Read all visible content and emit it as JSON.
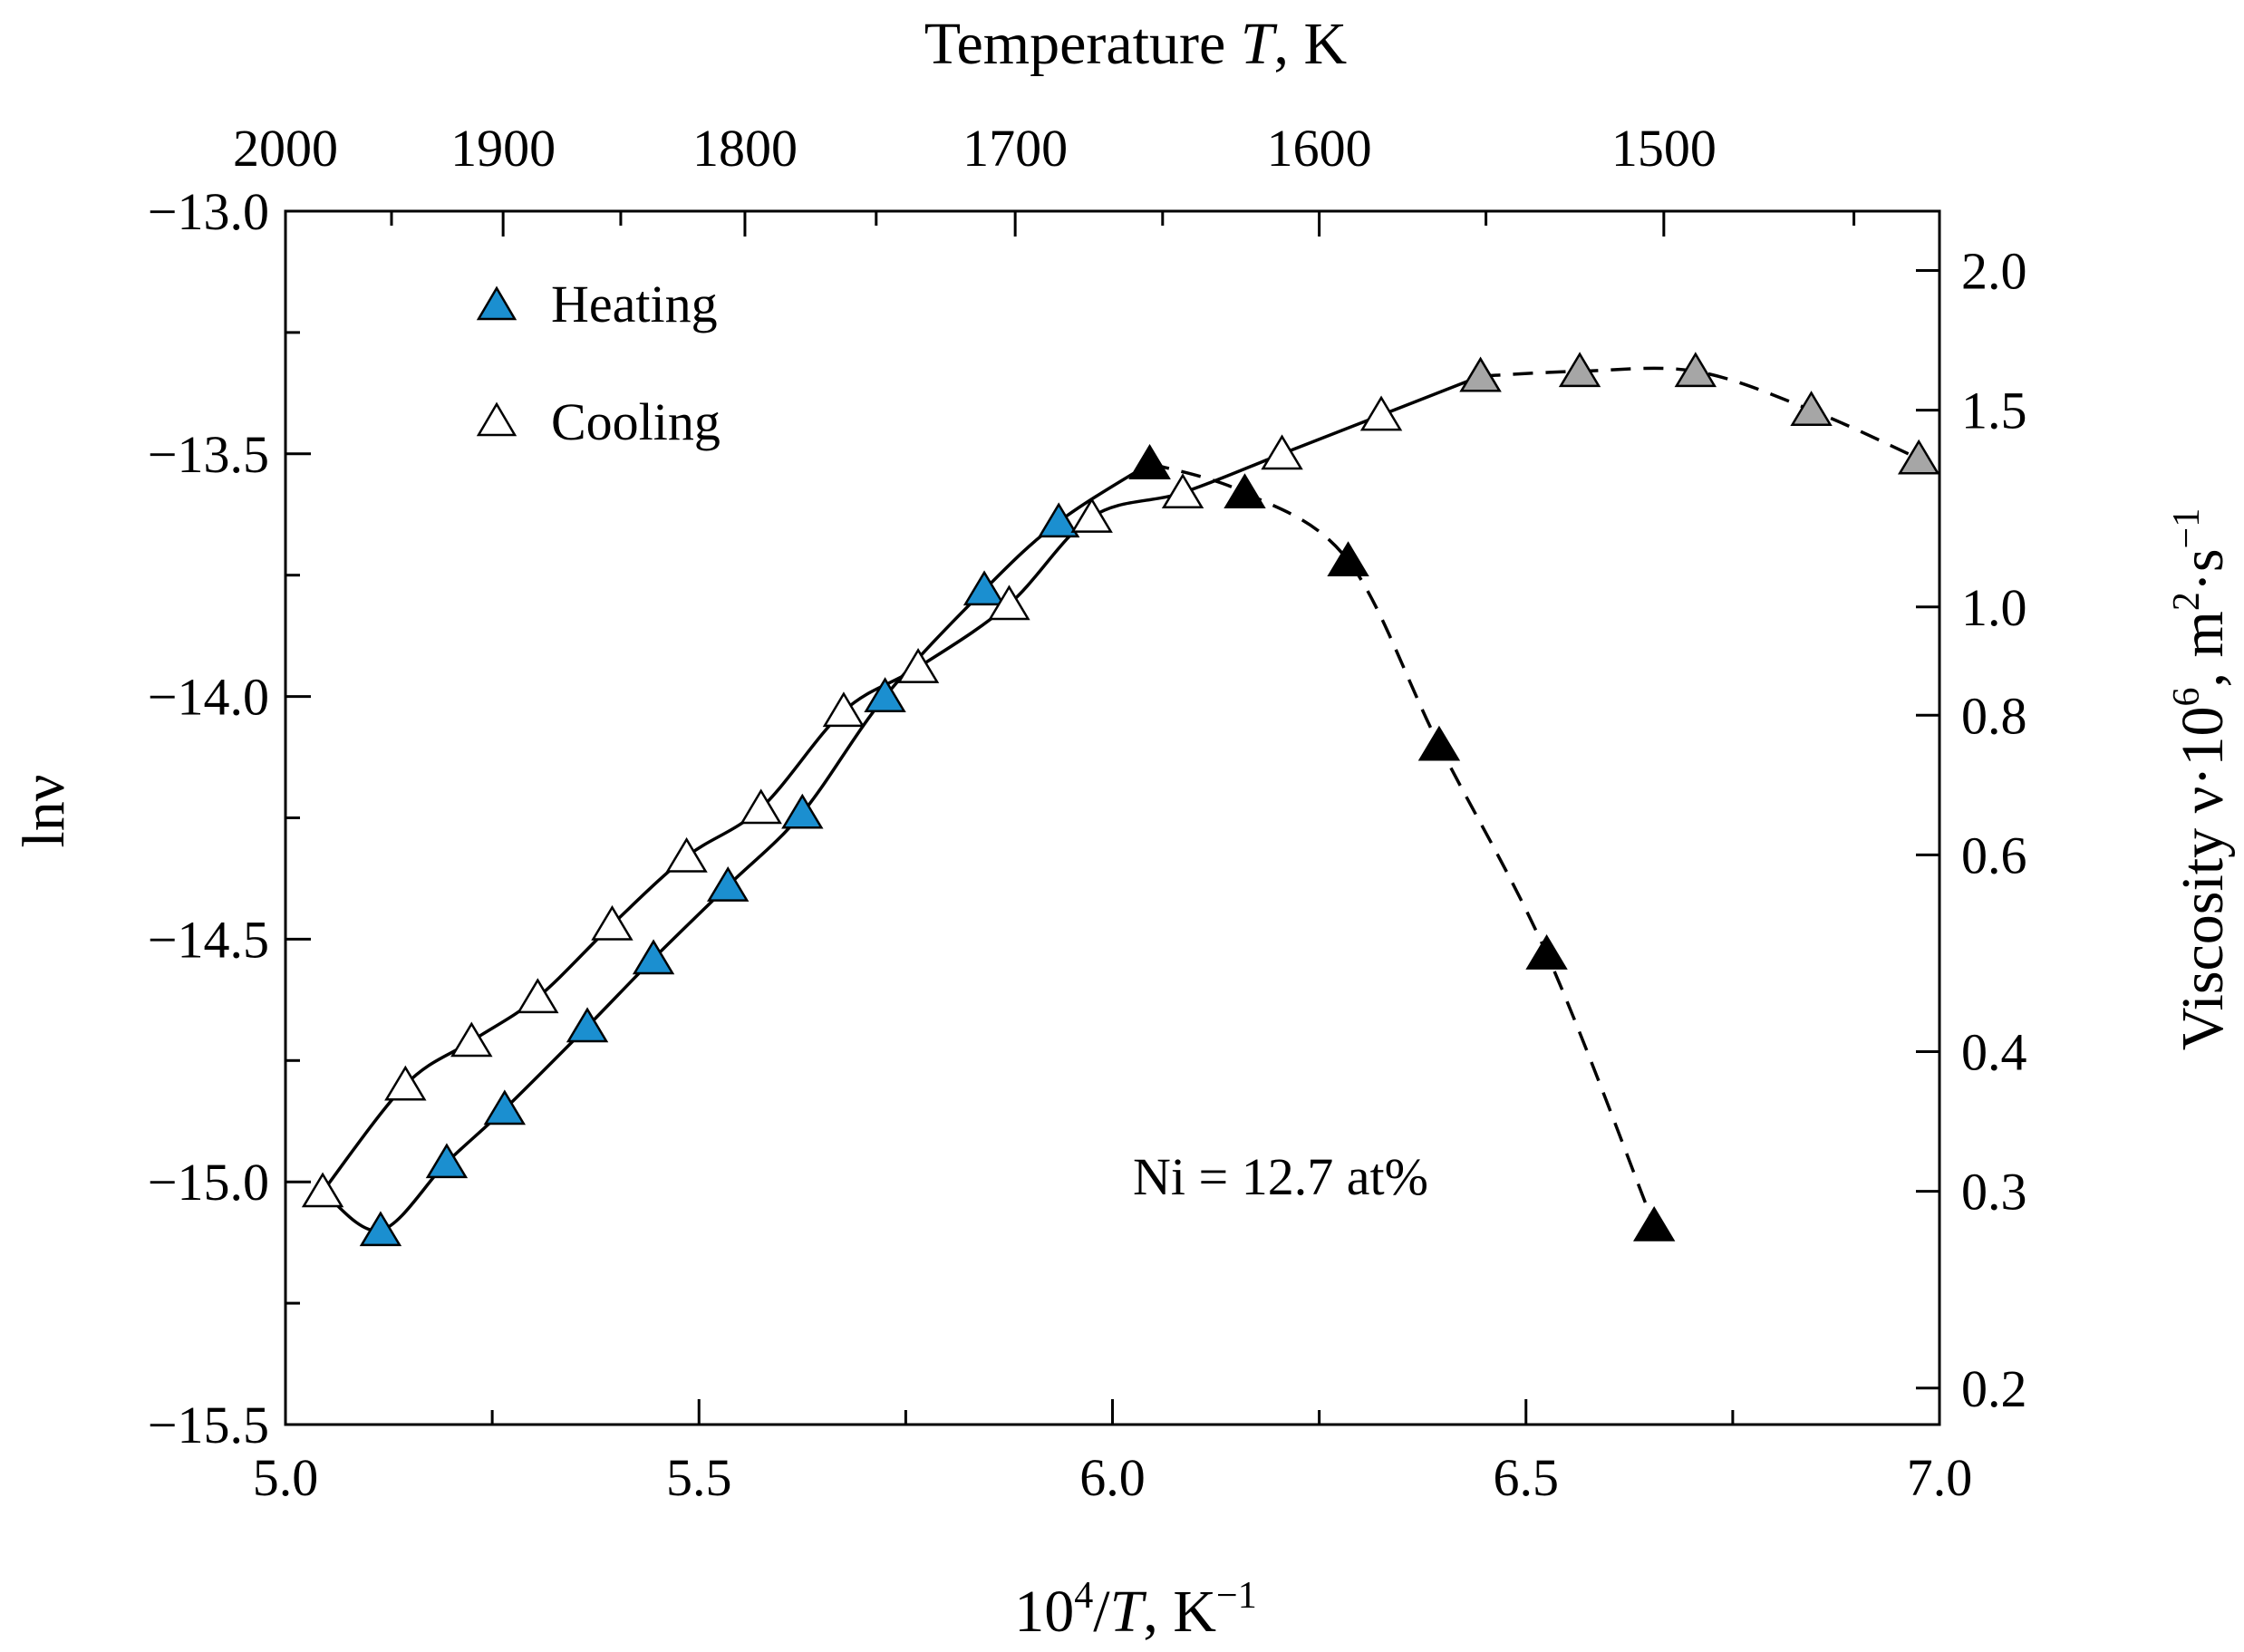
{
  "chart_data": {
    "type": "scatter",
    "title": "Temperature T, K",
    "xlabel": "10⁴/T, K⁻¹",
    "ylabel": "lnν",
    "y2label": "Viscosity ν·10⁶, m²·s⁻¹",
    "xlim": [
      5.0,
      7.0
    ],
    "ylim": [
      -15.5,
      -13.0
    ],
    "x_ticks": [
      "5.0",
      "5.5",
      "6.0",
      "6.5",
      "7.0"
    ],
    "y_ticks": [
      "-13.0",
      "-13.5",
      "-14.0",
      "-14.5",
      "-15.0",
      "-15.5"
    ],
    "top_axis": {
      "label": "Temperature T, K",
      "ticks": [
        "2000",
        "1900",
        "1800",
        "1700",
        "1600",
        "1500"
      ]
    },
    "right_axis": {
      "label": "Viscosity ν·10⁶, m²·s⁻¹",
      "ticks": [
        "2.0",
        "1.5",
        "1.0",
        "0.8",
        "0.6",
        "0.4",
        "0.3",
        "0.2"
      ]
    },
    "annotation": "Ni = 12.7 at%",
    "legend": {
      "position": "top-left",
      "entries": [
        "Heating",
        "Cooling"
      ]
    },
    "colors": {
      "heating": "#1b8fd0",
      "gray": "#a6a6a6",
      "black": "#000000",
      "white": "#ffffff"
    },
    "series": [
      {
        "name": "Heating",
        "marker": "filled-triangle-blue",
        "line": "solid",
        "x": [
          5.115,
          5.195,
          5.265,
          5.365,
          5.445,
          5.535,
          5.625,
          5.725,
          5.845,
          5.935,
          6.045
        ],
        "y": [
          -15.1,
          -14.96,
          -14.85,
          -14.68,
          -14.54,
          -14.39,
          -14.24,
          -14.0,
          -13.78,
          -13.64,
          -13.52
        ]
      },
      {
        "name": "Cooling",
        "marker": "open-triangle",
        "line": "solid",
        "x": [
          5.045,
          5.145,
          5.225,
          5.305,
          5.395,
          5.485,
          5.575,
          5.675,
          5.765,
          5.875,
          5.975,
          6.085,
          6.205,
          6.325,
          6.445
        ],
        "y": [
          -15.02,
          -14.8,
          -14.71,
          -14.62,
          -14.47,
          -14.33,
          -14.23,
          -14.03,
          -13.94,
          -13.81,
          -13.63,
          -13.58,
          -13.5,
          -13.42,
          -13.34
        ]
      },
      {
        "marker": "filled-triangle-gray",
        "line": "dashed",
        "x": [
          6.445,
          6.565,
          6.705,
          6.845,
          6.975
        ],
        "y": [
          -13.34,
          -13.33,
          -13.33,
          -13.41,
          -13.51
        ]
      },
      {
        "marker": "filled-triangle-black",
        "line": "dashed",
        "x": [
          6.045,
          6.16,
          6.285,
          6.395,
          6.525,
          6.655
        ],
        "y": [
          -13.52,
          -13.58,
          -13.72,
          -14.1,
          -14.53,
          -15.09
        ]
      }
    ]
  }
}
